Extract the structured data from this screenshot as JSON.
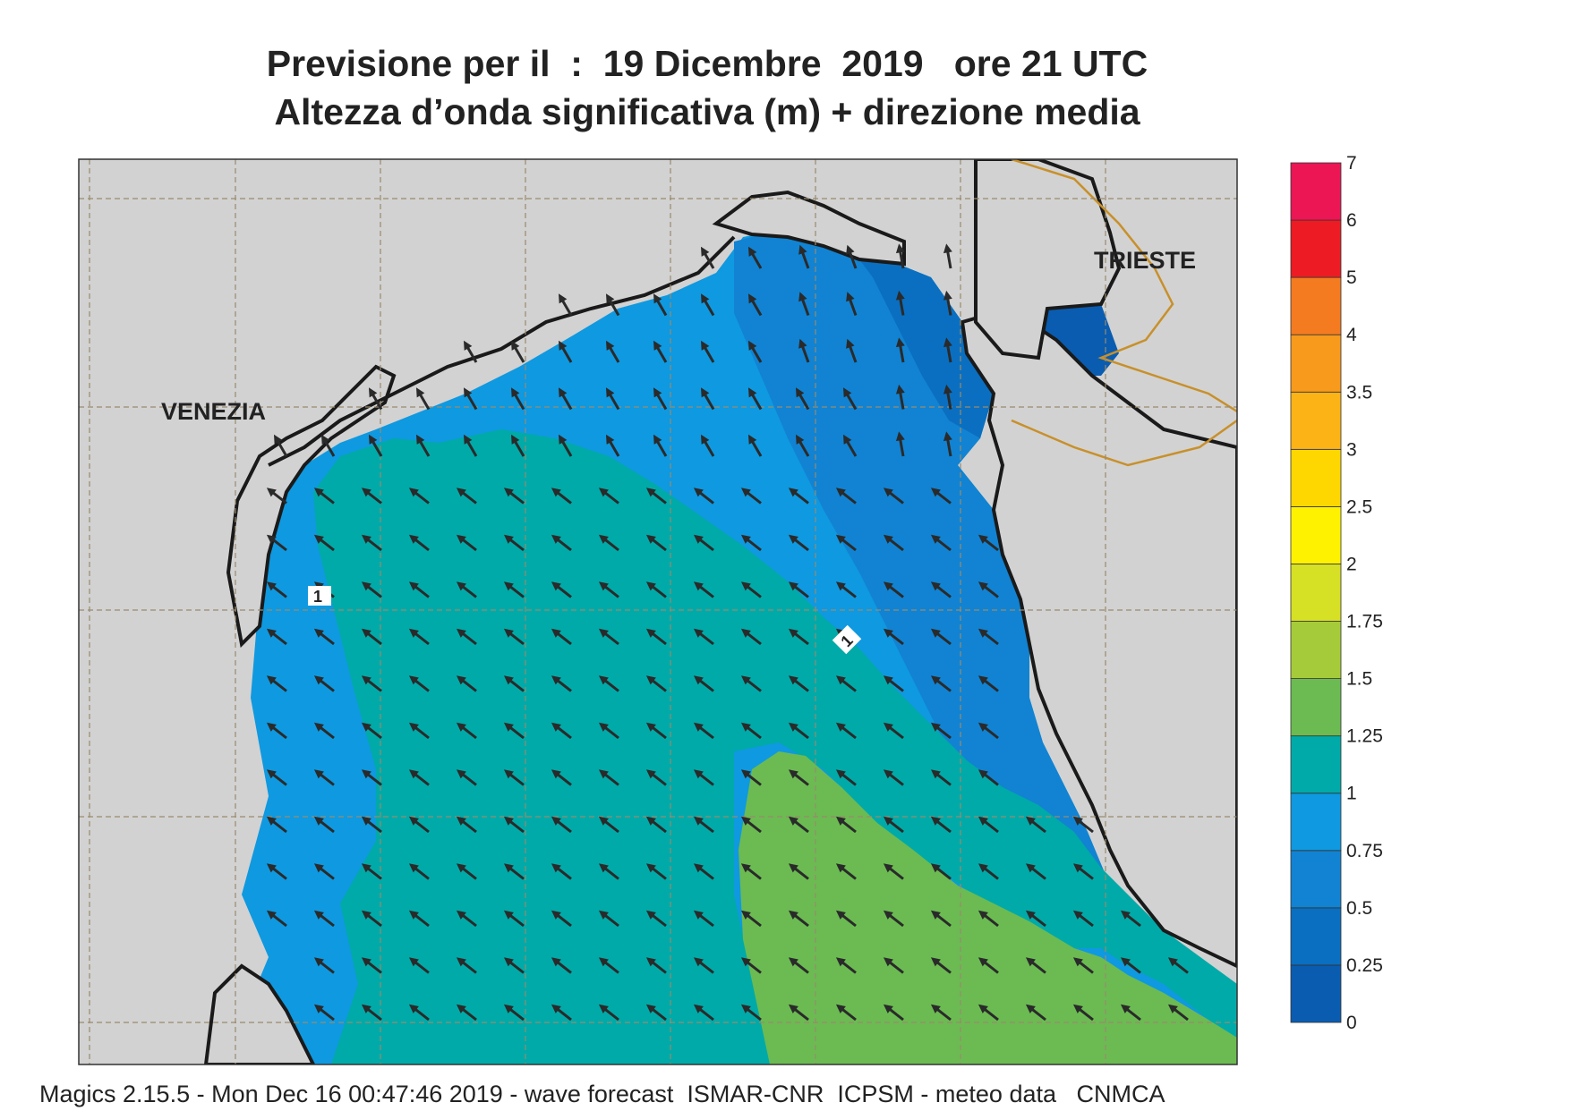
{
  "title": {
    "line1": "Previsione per il  :  19 Dicembre  2019   ore 21 UTC",
    "line2": "Altezza d’onda significativa (m) + direzione media"
  },
  "footer": "Magics 2.15.5 - Mon Dec 16 00:47:46 2019 - wave forecast  ISMAR-CNR  ICPSM - meteo data   CNMCA",
  "places": {
    "venezia": "VENEZIA",
    "trieste": "TRIESTE"
  },
  "contour_labels": [
    "1",
    "1"
  ],
  "legend": {
    "levels": [
      {
        "value": "0",
        "color": "#0a5cb0"
      },
      {
        "value": "0.25",
        "color": "#0a6fc0"
      },
      {
        "value": "0.5",
        "color": "#1183d2"
      },
      {
        "value": "0.75",
        "color": "#0f99e0"
      },
      {
        "value": "1",
        "color": "#00aaa8"
      },
      {
        "value": "1.25",
        "color": "#6bbb52"
      },
      {
        "value": "1.5",
        "color": "#a6cb3a"
      },
      {
        "value": "1.75",
        "color": "#d6e024"
      },
      {
        "value": "2",
        "color": "#fff200"
      },
      {
        "value": "2.5",
        "color": "#fed700"
      },
      {
        "value": "3",
        "color": "#fcb316"
      },
      {
        "value": "3.5",
        "color": "#f89a1c"
      },
      {
        "value": "4",
        "color": "#f47b20"
      },
      {
        "value": "5",
        "color": "#ed1c24"
      },
      {
        "value": "6",
        "color": "#ed1654"
      },
      {
        "value": "7",
        "color": ""
      }
    ]
  },
  "colors": {
    "land": "#d2d2d2",
    "coast": "#1a1a1a",
    "border": "#c8902a",
    "grid": "#9a8a6e",
    "arrow": "#2a2a2a"
  },
  "wave_direction": "north-west"
}
